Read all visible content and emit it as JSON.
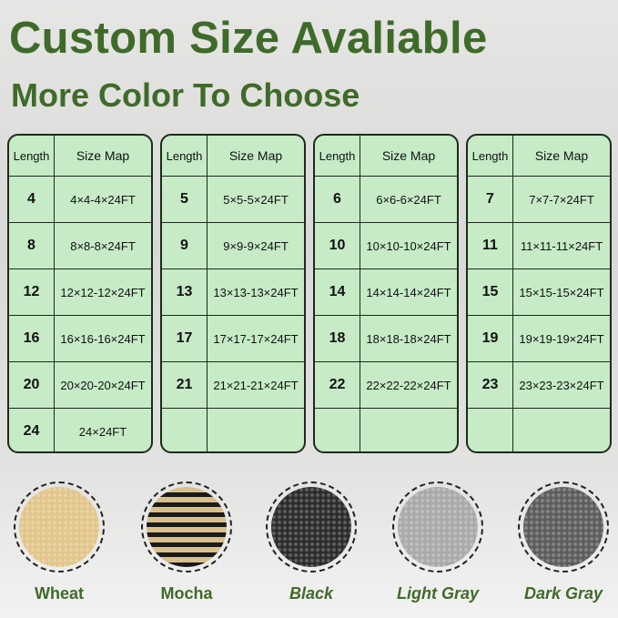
{
  "title": "Custom Size Avaliable",
  "subtitle": "More Color To Choose",
  "table_headers": {
    "length": "Length",
    "size_map": "Size Map"
  },
  "tables": [
    {
      "rows": [
        [
          "4",
          "4×4-4×24FT"
        ],
        [
          "8",
          "8×8-8×24FT"
        ],
        [
          "12",
          "12×12-12×24FT"
        ],
        [
          "16",
          "16×16-16×24FT"
        ],
        [
          "20",
          "20×20-20×24FT"
        ],
        [
          "24",
          "24×24FT"
        ]
      ]
    },
    {
      "rows": [
        [
          "5",
          "5×5-5×24FT"
        ],
        [
          "9",
          "9×9-9×24FT"
        ],
        [
          "13",
          "13×13-13×24FT"
        ],
        [
          "17",
          "17×17-17×24FT"
        ],
        [
          "21",
          "21×21-21×24FT"
        ],
        [
          "",
          ""
        ]
      ]
    },
    {
      "rows": [
        [
          "6",
          "6×6-6×24FT"
        ],
        [
          "10",
          "10×10-10×24FT"
        ],
        [
          "14",
          "14×14-14×24FT"
        ],
        [
          "18",
          "18×18-18×24FT"
        ],
        [
          "22",
          "22×22-22×24FT"
        ],
        [
          "",
          ""
        ]
      ]
    },
    {
      "rows": [
        [
          "7",
          "7×7-7×24FT"
        ],
        [
          "11",
          "11×11-11×24FT"
        ],
        [
          "15",
          "15×15-15×24FT"
        ],
        [
          "19",
          "19×19-19×24FT"
        ],
        [
          "23",
          "23×23-23×24FT"
        ],
        [
          "",
          ""
        ]
      ]
    }
  ],
  "colors": [
    {
      "name": "Wheat",
      "swatch": "#e2c58a"
    },
    {
      "name": "Mocha",
      "swatch": "#8a7656"
    },
    {
      "name": "Black",
      "swatch": "#2b2b2b"
    },
    {
      "name": "Light Gray",
      "swatch": "#a9a9a9"
    },
    {
      "name": "Dark Gray",
      "swatch": "#5c5c5c"
    }
  ],
  "accent": "#3f6b2a"
}
